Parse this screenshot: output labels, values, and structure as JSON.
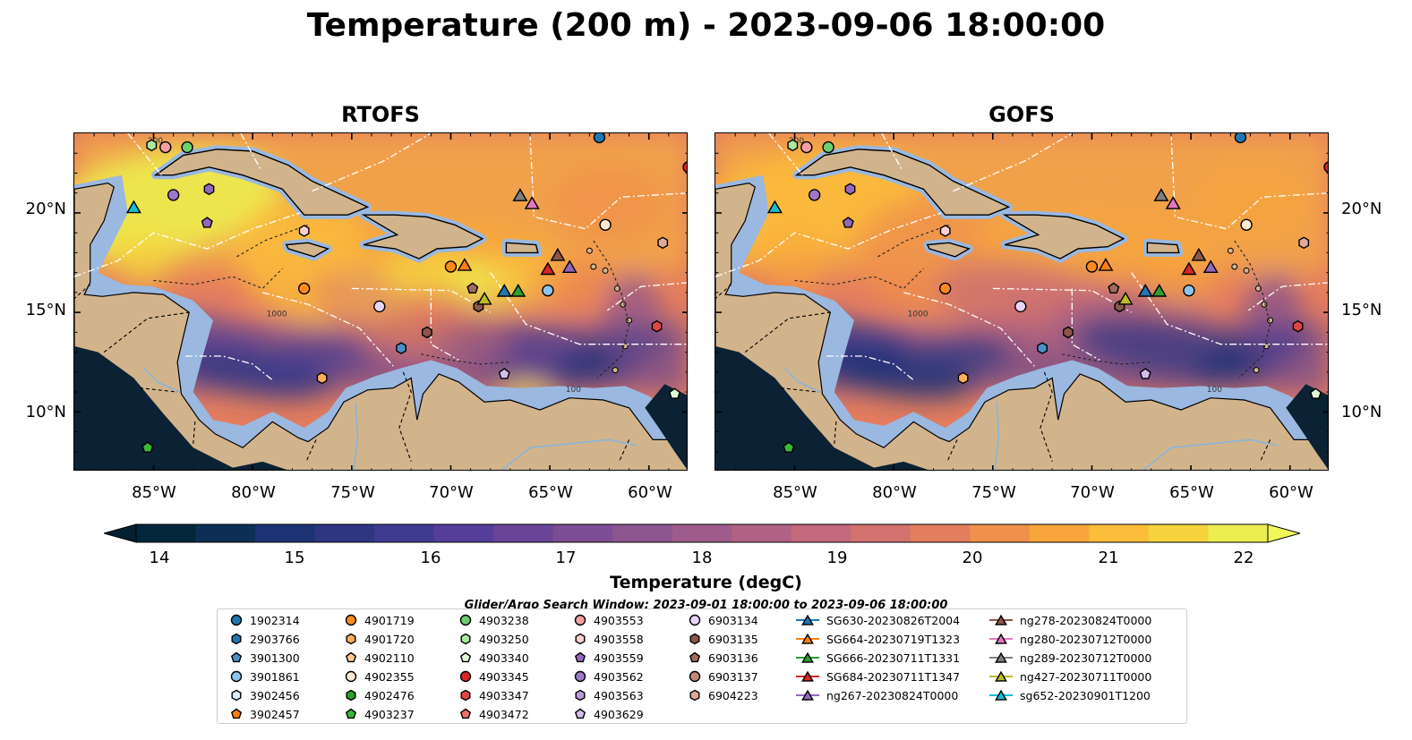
{
  "title": "Temperature (200 m) - 2023-09-06 18:00:00",
  "panels": [
    {
      "title": "RTOFS"
    },
    {
      "title": "GOFS"
    }
  ],
  "map": {
    "lon_range": [
      -89,
      -58
    ],
    "lat_range": [
      7,
      24
    ],
    "lat_ticks": [
      "20°N",
      "15°N",
      "10°N"
    ],
    "lon_ticks": [
      "85°W",
      "80°W",
      "75°W",
      "70°W",
      "65°W",
      "60°W"
    ],
    "contour_labels": [
      "200",
      "1000",
      "100"
    ],
    "colors": {
      "land": "#d2b48c",
      "shelf": "#9ab8e0",
      "deep": "#0a2233"
    }
  },
  "colorbar": {
    "title": "Temperature (degC)",
    "min": 14,
    "max": 22,
    "ticks": [
      "14",
      "15",
      "16",
      "17",
      "18",
      "19",
      "20",
      "21",
      "22"
    ],
    "colors": [
      "#03273a",
      "#0d2f56",
      "#1c3272",
      "#2e3682",
      "#3f3b91",
      "#553e99",
      "#6a4597",
      "#7c4d94",
      "#8c5590",
      "#9d5c8b",
      "#b06284",
      "#c3697c",
      "#d47270",
      "#e47d5e",
      "#f0904a",
      "#f8a63c",
      "#fbbd3a",
      "#f5d43e",
      "#eced4e"
    ],
    "under": "#052030",
    "over": "#f0f75a"
  },
  "search_window": "Glider/Argo Search Window: 2023-09-01 18:00:00 to 2023-09-06 18:00:00",
  "legend": {
    "columns": [
      [
        {
          "label": "1902314",
          "marker": "circle",
          "color": "#1f77b4"
        },
        {
          "label": "2903766",
          "marker": "hexagon",
          "color": "#1f77b4"
        },
        {
          "label": "3901300",
          "marker": "pentagon",
          "color": "#4a90c8"
        },
        {
          "label": "3901861",
          "marker": "circle",
          "color": "#8ec4ec"
        },
        {
          "label": "3902456",
          "marker": "hexagon",
          "color": "#d8eef8"
        },
        {
          "label": "3902457",
          "marker": "pentagon",
          "color": "#ff7f0e"
        }
      ],
      [
        {
          "label": "4901719",
          "marker": "circle",
          "color": "#ff8c1a"
        },
        {
          "label": "4901720",
          "marker": "hexagon",
          "color": "#ffae5c"
        },
        {
          "label": "4902110",
          "marker": "pentagon",
          "color": "#ffc896"
        },
        {
          "label": "4902355",
          "marker": "circle",
          "color": "#ffe8cc"
        },
        {
          "label": "4902476",
          "marker": "hexagon",
          "color": "#2ca02c"
        },
        {
          "label": "4903237",
          "marker": "pentagon",
          "color": "#38b838"
        }
      ],
      [
        {
          "label": "4903238",
          "marker": "circle",
          "color": "#6cd06c"
        },
        {
          "label": "4903250",
          "marker": "hexagon",
          "color": "#a8e8a0"
        },
        {
          "label": "4903340",
          "marker": "pentagon",
          "color": "#e0f8d8"
        },
        {
          "label": "4903345",
          "marker": "circle",
          "color": "#d62728"
        },
        {
          "label": "4903347",
          "marker": "hexagon",
          "color": "#e04444"
        },
        {
          "label": "4903472",
          "marker": "pentagon",
          "color": "#f07070"
        }
      ],
      [
        {
          "label": "4903553",
          "marker": "circle",
          "color": "#f4a0a0"
        },
        {
          "label": "4903558",
          "marker": "hexagon",
          "color": "#fcd0d0"
        },
        {
          "label": "4903559",
          "marker": "pentagon",
          "color": "#9467bd"
        },
        {
          "label": "4903562",
          "marker": "circle",
          "color": "#9e78c8"
        },
        {
          "label": "4903563",
          "marker": "hexagon",
          "color": "#b89ad8"
        },
        {
          "label": "4903629",
          "marker": "pentagon",
          "color": "#d4bcec"
        }
      ],
      [
        {
          "label": "6903134",
          "marker": "circle",
          "color": "#e8d4f8"
        },
        {
          "label": "6903135",
          "marker": "hexagon",
          "color": "#8c564b"
        },
        {
          "label": "6903136",
          "marker": "pentagon",
          "color": "#a06a5e"
        },
        {
          "label": "6903137",
          "marker": "circle",
          "color": "#c08878"
        },
        {
          "label": "6904223",
          "marker": "hexagon",
          "color": "#e0aa98"
        }
      ],
      [
        {
          "label": "SG630-20230826T2004",
          "marker": "triangle",
          "color": "#1f77b4"
        },
        {
          "label": "SG664-20230719T1323",
          "marker": "triangle",
          "color": "#ff7f0e"
        },
        {
          "label": "SG666-20230711T1331",
          "marker": "triangle",
          "color": "#2ca02c"
        },
        {
          "label": "SG684-20230711T1347",
          "marker": "triangle",
          "color": "#d62728"
        },
        {
          "label": "ng267-20230824T0000",
          "marker": "triangle",
          "color": "#9467bd"
        }
      ],
      [
        {
          "label": "ng278-20230824T0000",
          "marker": "triangle",
          "color": "#8c564b"
        },
        {
          "label": "ng280-20230712T0000",
          "marker": "triangle",
          "color": "#e377c2"
        },
        {
          "label": "ng289-20230712T0000",
          "marker": "triangle",
          "color": "#7f7f7f"
        },
        {
          "label": "ng427-20230711T0000",
          "marker": "triangle",
          "color": "#bcbd22"
        },
        {
          "label": "sg652-20230901T1200",
          "marker": "triangle",
          "color": "#17becf"
        }
      ]
    ]
  }
}
